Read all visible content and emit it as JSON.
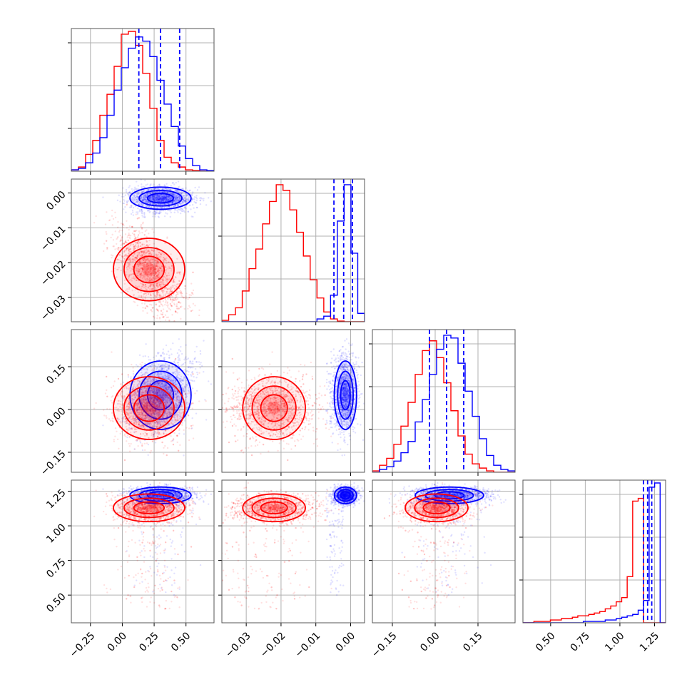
{
  "chart_data": {
    "type": "corner",
    "colors": {
      "series_a": "#0000ff",
      "series_b": "#ff0000"
    },
    "grid": true,
    "series": [
      {
        "color": "#0000ff"
      },
      {
        "color": "#ff0000"
      }
    ],
    "parameters": [
      {
        "range": [
          -0.4,
          0.72
        ],
        "ticks": [
          -0.25,
          0.0,
          0.25,
          0.5
        ],
        "tick_labels": [
          "−0.25",
          "0.00",
          "0.25",
          "0.50"
        ],
        "quantiles_series_a": [
          0.13,
          0.3,
          0.45
        ],
        "hist_series_a": [
          0.01,
          0.02,
          0.06,
          0.13,
          0.24,
          0.4,
          0.58,
          0.74,
          0.88,
          0.96,
          0.93,
          0.82,
          0.65,
          0.48,
          0.32,
          0.18,
          0.09,
          0.04,
          0.01,
          0.005
        ],
        "hist_series_b": [
          0.01,
          0.03,
          0.12,
          0.22,
          0.4,
          0.55,
          0.75,
          0.98,
          1.0,
          0.9,
          0.7,
          0.45,
          0.22,
          0.1,
          0.06,
          0.03,
          0.01,
          0.005,
          0.0,
          0.0
        ]
      },
      {
        "range": [
          -0.037,
          0.004
        ],
        "ticks": [
          -0.03,
          -0.02,
          -0.01,
          0.0
        ],
        "tick_labels": [
          "−0.03",
          "−0.02",
          "−0.01",
          "0.00"
        ],
        "quantiles_series_a": [
          -0.0048,
          -0.002,
          0.0005
        ],
        "hist_series_a": [
          0.0,
          0.0,
          0.0,
          0.0,
          0.0,
          0.0,
          0.0,
          0.0,
          0.0,
          0.0,
          0.0,
          0.0,
          0.0,
          0.0,
          0.02,
          0.04,
          0.19,
          0.72,
          0.98,
          0.49,
          0.06
        ],
        "hist_series_b": [
          0.01,
          0.05,
          0.1,
          0.22,
          0.38,
          0.52,
          0.7,
          0.86,
          0.98,
          0.94,
          0.8,
          0.64,
          0.47,
          0.3,
          0.17,
          0.07,
          0.02,
          0.005,
          0.0,
          0.0,
          0.0
        ]
      },
      {
        "range": [
          -0.22,
          0.28
        ],
        "ticks": [
          -0.15,
          0.0,
          0.15
        ],
        "tick_labels": [
          "−0.15",
          "0.00",
          "0.15"
        ],
        "quantiles_series_a": [
          -0.02,
          0.04,
          0.1
        ],
        "hist_series_a": [
          0.0,
          0.02,
          0.04,
          0.08,
          0.14,
          0.22,
          0.36,
          0.52,
          0.7,
          0.88,
          0.98,
          0.96,
          0.78,
          0.58,
          0.4,
          0.24,
          0.12,
          0.05,
          0.02,
          0.01
        ],
        "hist_series_b": [
          0.01,
          0.05,
          0.1,
          0.2,
          0.33,
          0.5,
          0.7,
          0.87,
          0.94,
          0.82,
          0.64,
          0.44,
          0.26,
          0.13,
          0.06,
          0.03,
          0.01,
          0.0,
          0.0,
          0.0
        ]
      },
      {
        "range": [
          0.3,
          1.33
        ],
        "ticks": [
          0.5,
          0.75,
          1.0,
          1.25
        ],
        "tick_labels": [
          "0.50",
          "0.75",
          "1.00",
          "1.25"
        ],
        "quantiles_series_a": [
          1.17,
          1.2,
          1.23
        ],
        "hist_series_a": [
          0.0,
          0.0,
          0.0,
          0.0,
          0.0,
          0.0,
          0.0,
          0.0,
          0.0,
          0.0,
          0.0,
          0.01,
          0.01,
          0.01,
          0.01,
          0.02,
          0.02,
          0.03,
          0.04,
          0.05,
          0.06,
          0.09,
          0.16,
          0.97,
          1.0,
          0.0
        ],
        "hist_series_b": [
          0.0,
          0.0,
          0.01,
          0.01,
          0.01,
          0.02,
          0.02,
          0.03,
          0.03,
          0.04,
          0.05,
          0.05,
          0.06,
          0.07,
          0.08,
          0.1,
          0.12,
          0.15,
          0.18,
          0.33,
          0.87,
          0.89,
          0.0,
          0.0,
          0.0,
          0.0
        ]
      }
    ],
    "posteriors": {
      "series_a": {
        "mean": [
          0.3,
          -0.0015,
          0.05,
          1.22
        ],
        "std": [
          0.12,
          0.0016,
          0.06,
          0.03
        ]
      },
      "series_b": {
        "mean": [
          0.21,
          -0.022,
          0.005,
          1.13
        ],
        "std": [
          0.14,
          0.0045,
          0.055,
          0.05
        ]
      }
    }
  }
}
